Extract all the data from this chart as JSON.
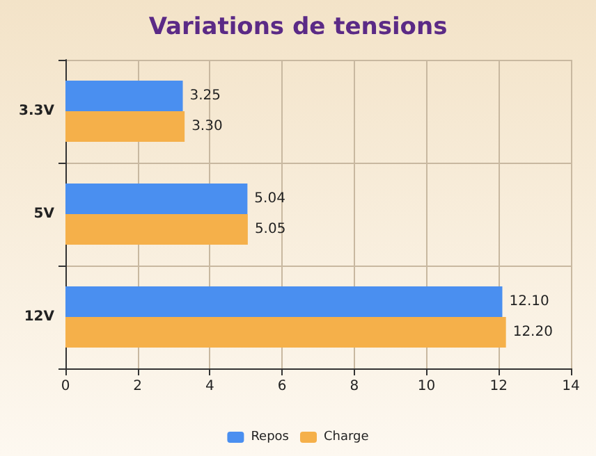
{
  "chart_data": {
    "type": "bar",
    "orientation": "horizontal",
    "title": "Variations de tensions",
    "categories": [
      "3.3V",
      "5V",
      "12V"
    ],
    "series": [
      {
        "name": "Repos",
        "color": "#4a8ff0",
        "values": [
          3.25,
          5.04,
          12.1
        ],
        "value_labels": [
          "3.25",
          "5.04",
          "12.10"
        ]
      },
      {
        "name": "Charge",
        "color": "#f5b04a",
        "values": [
          3.3,
          5.05,
          12.2
        ],
        "value_labels": [
          "3.30",
          "5.05",
          "12.20"
        ]
      }
    ],
    "xlim": [
      0,
      14
    ],
    "xticks": [
      0,
      2,
      4,
      6,
      8,
      10,
      12,
      14
    ],
    "grid": true,
    "legend": "bottom"
  }
}
